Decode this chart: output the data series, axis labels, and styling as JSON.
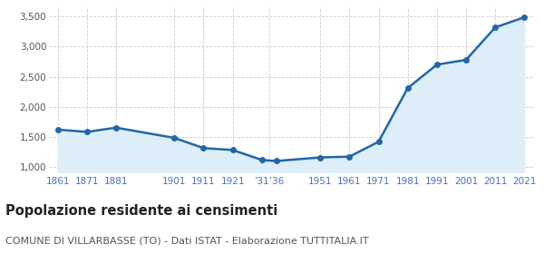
{
  "years": [
    1861,
    1871,
    1881,
    1901,
    1911,
    1921,
    1931,
    1936,
    1951,
    1961,
    1971,
    1981,
    1991,
    2001,
    2011,
    2021
  ],
  "population": [
    1618,
    1580,
    1651,
    1480,
    1310,
    1278,
    1112,
    1095,
    1155,
    1168,
    1415,
    2310,
    2700,
    2780,
    3320,
    3490
  ],
  "line_color": "#2266aa",
  "fill_color": "#ddeef8",
  "marker_color": "#2266aa",
  "bg_color": "#ffffff",
  "grid_color": "#cccccc",
  "ylim": [
    900,
    3650
  ],
  "yticks": [
    1000,
    1500,
    2000,
    2500,
    3000,
    3500
  ],
  "title": "Popolazione residente ai censimenti",
  "subtitle": "COMUNE DI VILLARBASSE (TO) - Dati ISTAT - Elaborazione TUTTITALIA.IT",
  "title_fontsize": 10.5,
  "subtitle_fontsize": 8,
  "title_color": "#222222",
  "subtitle_color": "#555555",
  "axis_label_color": "#4472c4"
}
